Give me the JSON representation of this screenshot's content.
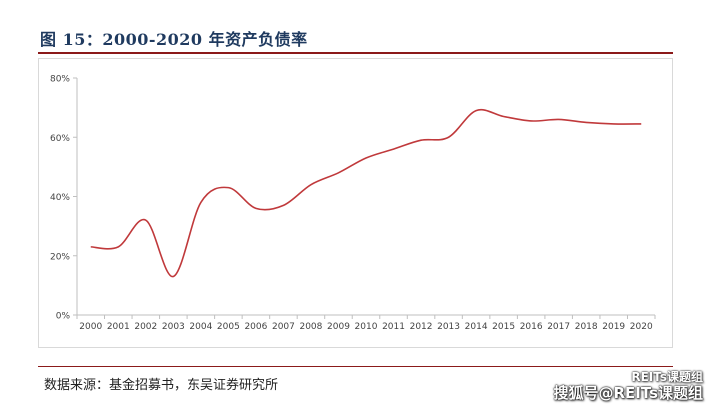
{
  "figure": {
    "title": "图 15：2000-2020 年资产负债率",
    "source": "数据来源：基金招募书，东吴证券研究所"
  },
  "watermark": {
    "line1": "REITs课题组",
    "line2": "搜狐号@REITs课题组"
  },
  "colors": {
    "line": "#c0393b",
    "title": "#1f3a5f",
    "rule": "#8b1a1a",
    "axis": "#bfbfbf"
  },
  "chart_data": {
    "type": "line",
    "title": "",
    "xlabel": "",
    "ylabel": "",
    "x": [
      "2000",
      "2001",
      "2002",
      "2003",
      "2004",
      "2005",
      "2006",
      "2007",
      "2008",
      "2009",
      "2010",
      "2011",
      "2012",
      "2013",
      "2014",
      "2015",
      "2016",
      "2017",
      "2018",
      "2019",
      "2020"
    ],
    "series": [
      {
        "values": [
          23,
          23,
          32,
          13,
          38,
          43,
          36,
          37,
          44,
          48,
          53,
          56,
          59,
          60,
          69,
          67,
          65.5,
          66,
          65,
          64.5,
          64.5
        ]
      }
    ],
    "yticks": [
      "0%",
      "20%",
      "40%",
      "60%",
      "80%"
    ],
    "ylim": [
      0,
      80
    ],
    "grid": false,
    "legend": "none"
  }
}
